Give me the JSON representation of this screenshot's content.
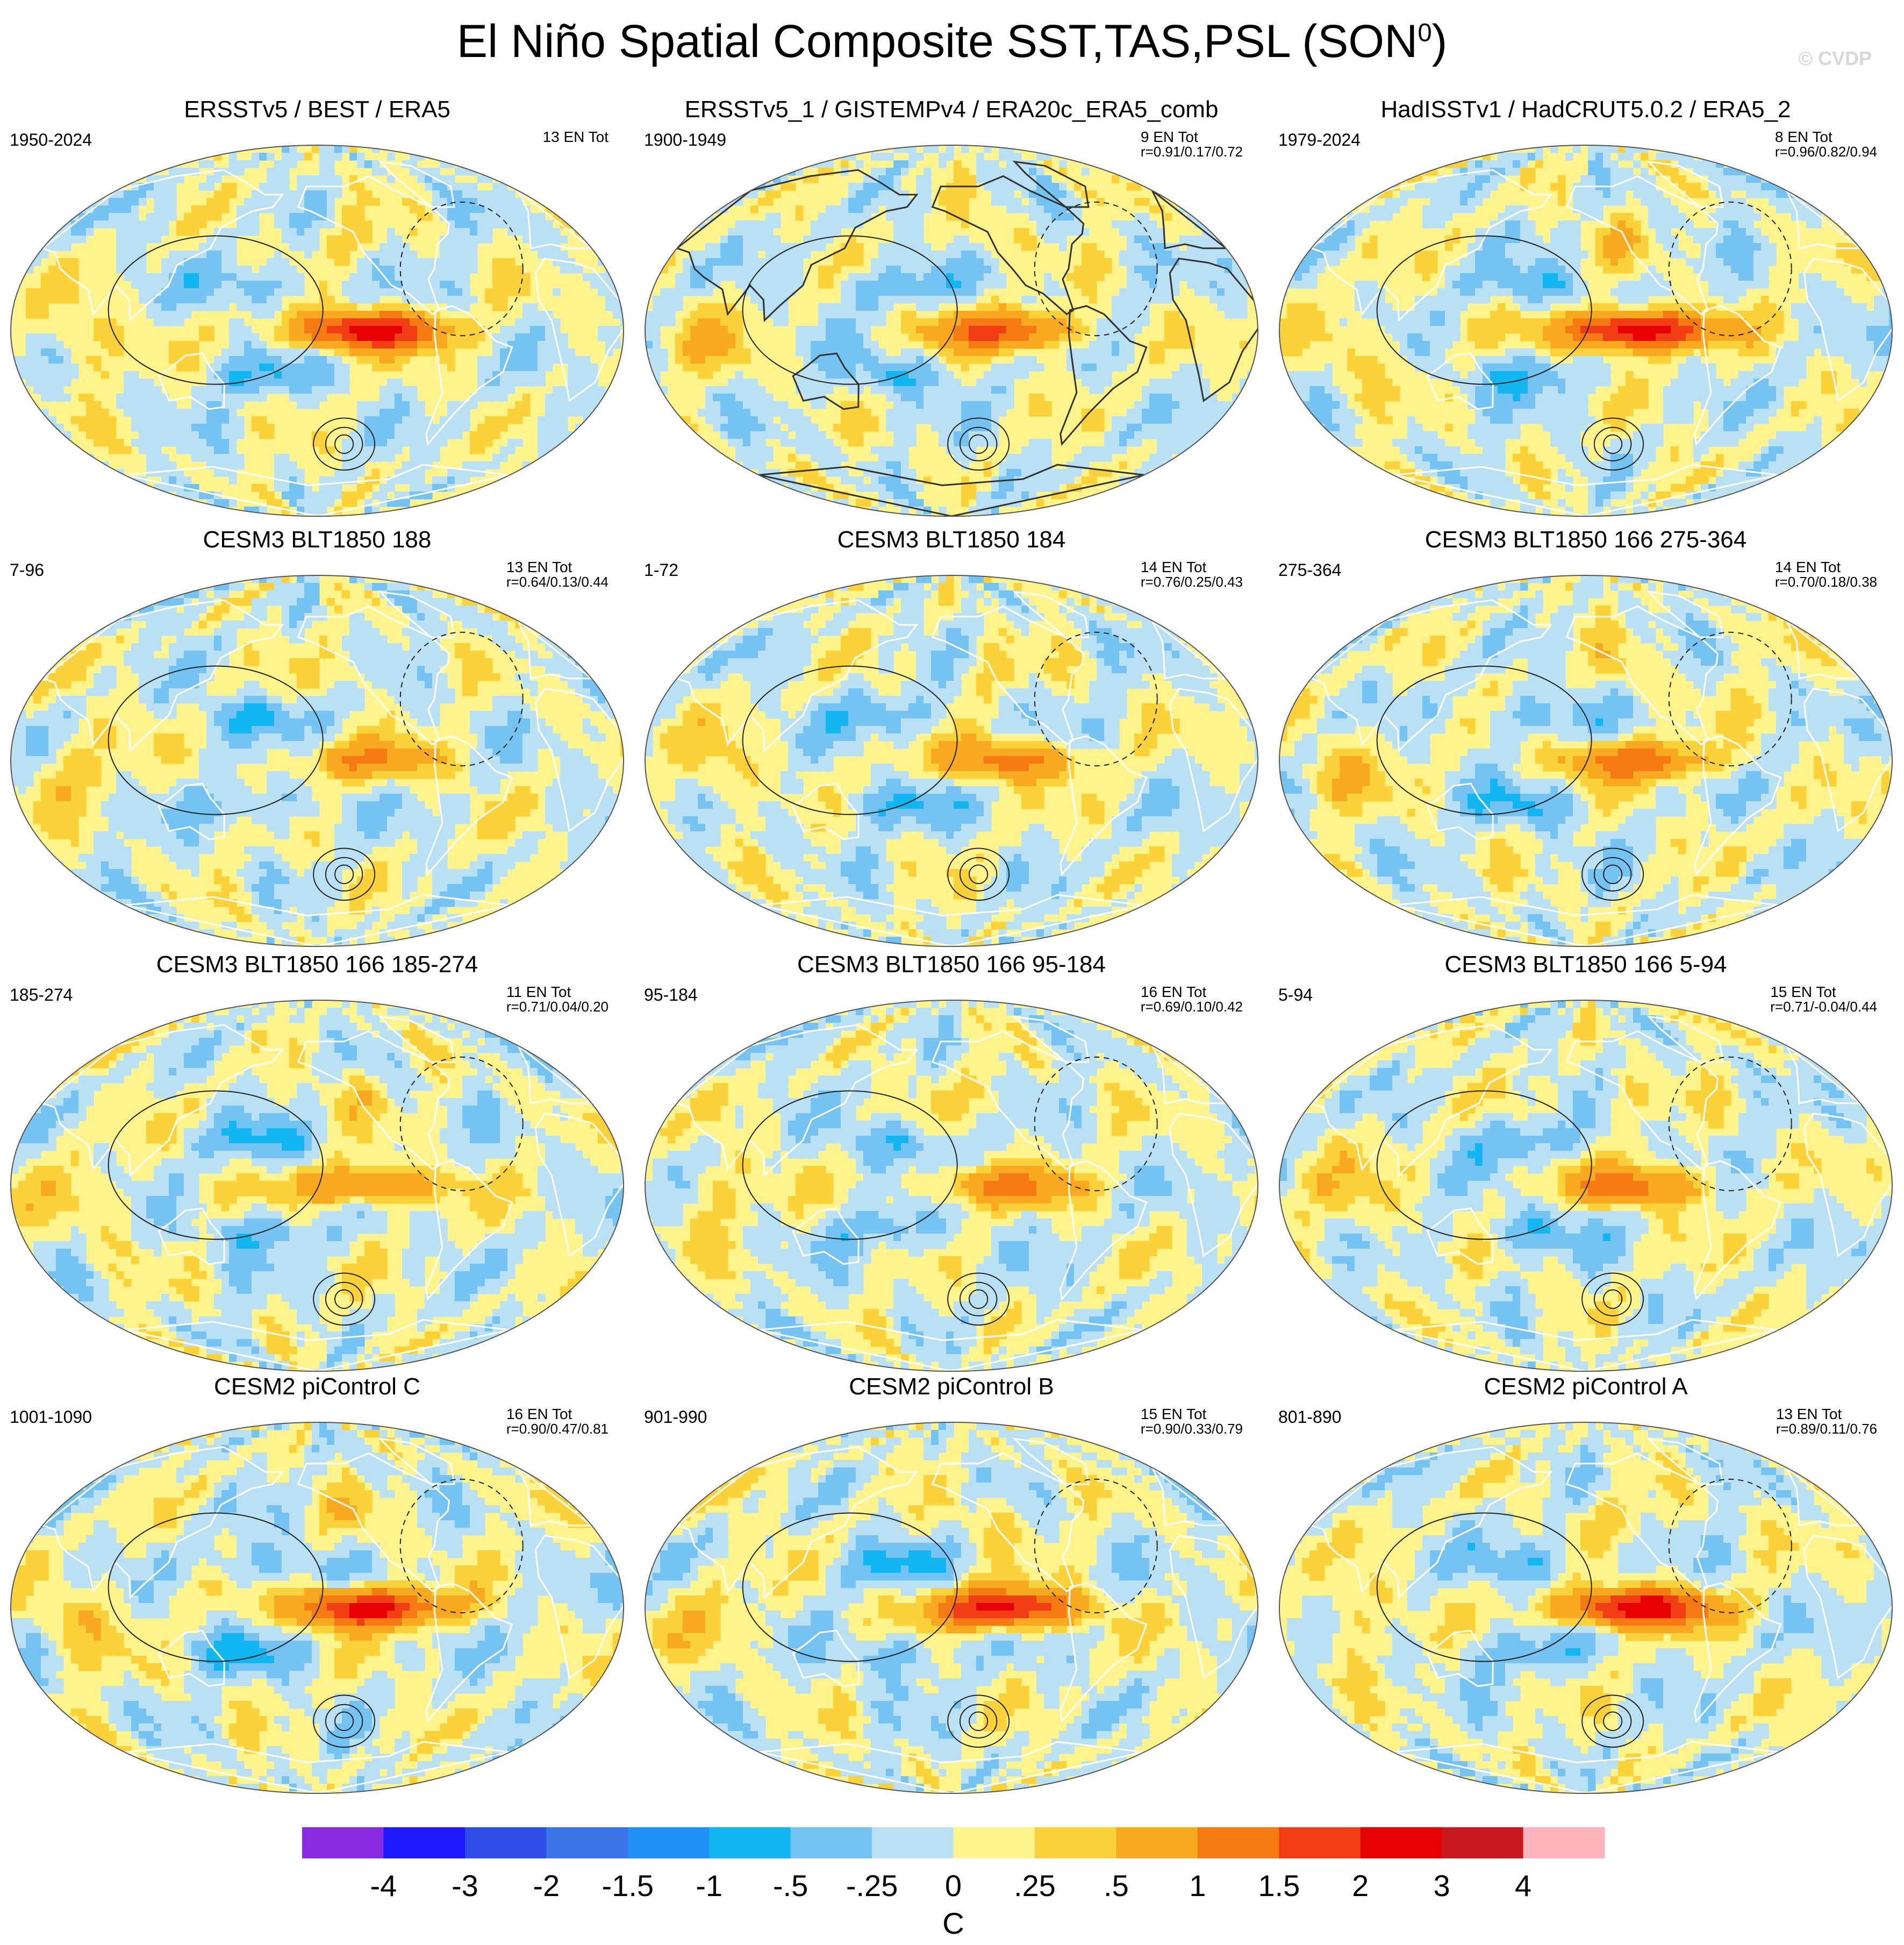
{
  "title_main": "El Niño Spatial Composite SST,TAS,PSL (SON",
  "title_sup": "0",
  "title_close": ")",
  "watermark": "© CVDP",
  "chart_data": {
    "type": "heatmap",
    "description_units": "C",
    "colorbar": {
      "labels": [
        "-4",
        "-3",
        "-2",
        "-1.5",
        "-1",
        "-.5",
        "-.25",
        "0",
        ".25",
        ".5",
        "1",
        "1.5",
        "2",
        "3",
        "4"
      ],
      "colors": [
        "#8a2be2",
        "#1d1aff",
        "#2d4de6",
        "#3b73e8",
        "#1f8ff5",
        "#12b6f0",
        "#74c3f2",
        "#b9e0f3",
        "#fff38c",
        "#fcd23a",
        "#f9a91f",
        "#f57a12",
        "#f03d14",
        "#e60000",
        "#c8191f",
        "#ffb3bd"
      ],
      "unit_label": "C"
    },
    "panels": [
      {
        "title": "ERSSTv5 / BEST / ERA5",
        "years": "1950-2024",
        "count": "13 EN Tot",
        "corr": "",
        "style": "obs",
        "hot": 2.0,
        "land": "white-outline"
      },
      {
        "title": "ERSSTv5_1 / GISTEMPv4 / ERA20c_ERA5_comb",
        "years": "1900-1949",
        "count": "9 EN Tot",
        "corr": "r=0.91/0.17/0.72",
        "style": "obs",
        "hot": 1.3,
        "land": "black-outline"
      },
      {
        "title": "HadISSTv1 / HadCRUT5.0.2 / ERA5_2",
        "years": "1979-2024",
        "count": "8 EN Tot",
        "corr": "r=0.96/0.82/0.94",
        "style": "obs",
        "hot": 2.2,
        "land": "white-outline"
      },
      {
        "title": "CESM3 BLT1850 188",
        "years": "7-96",
        "count": "13 EN Tot",
        "corr": "r=0.64/0.13/0.44",
        "style": "model",
        "hot": 0.9,
        "land": "white-outline"
      },
      {
        "title": "CESM3 BLT1850 184",
        "years": "1-72",
        "count": "14 EN Tot",
        "corr": "r=0.76/0.25/0.43",
        "style": "model",
        "hot": 1.2,
        "land": "white-outline"
      },
      {
        "title": "CESM3 BLT1850 166 275-364",
        "years": "275-364",
        "count": "14 EN Tot",
        "corr": "r=0.70/0.18/0.38",
        "style": "model",
        "hot": 1.3,
        "land": "white-outline"
      },
      {
        "title": "CESM3 BLT1850 166 185-274",
        "years": "185-274",
        "count": "11 EN Tot",
        "corr": "r=0.71/0.04/0.20",
        "style": "model",
        "hot": 1.2,
        "land": "white-outline"
      },
      {
        "title": "CESM3 BLT1850 166 95-184",
        "years": "95-184",
        "count": "16 EN Tot",
        "corr": "r=0.69/0.10/0.42",
        "style": "model",
        "hot": 1.1,
        "land": "white-outline"
      },
      {
        "title": "CESM3 BLT1850 166 5-94",
        "years": "5-94",
        "count": "15 EN Tot",
        "corr": "r=0.71/-0.04/0.44",
        "style": "model",
        "hot": 1.2,
        "land": "white-outline"
      },
      {
        "title": "CESM2 piControl C",
        "years": "1001-1090",
        "count": "16 EN Tot",
        "corr": "r=0.90/0.47/0.81",
        "style": "cesm2",
        "hot": 2.0,
        "land": "white-outline"
      },
      {
        "title": "CESM2 piControl B",
        "years": "901-990",
        "count": "15 EN Tot",
        "corr": "r=0.90/0.33/0.79",
        "style": "cesm2",
        "hot": 2.0,
        "land": "white-outline"
      },
      {
        "title": "CESM2 piControl A",
        "years": "801-890",
        "count": "13 EN Tot",
        "corr": "r=0.89/0.11/0.76",
        "style": "cesm2",
        "hot": 2.1,
        "land": "white-outline"
      }
    ]
  }
}
